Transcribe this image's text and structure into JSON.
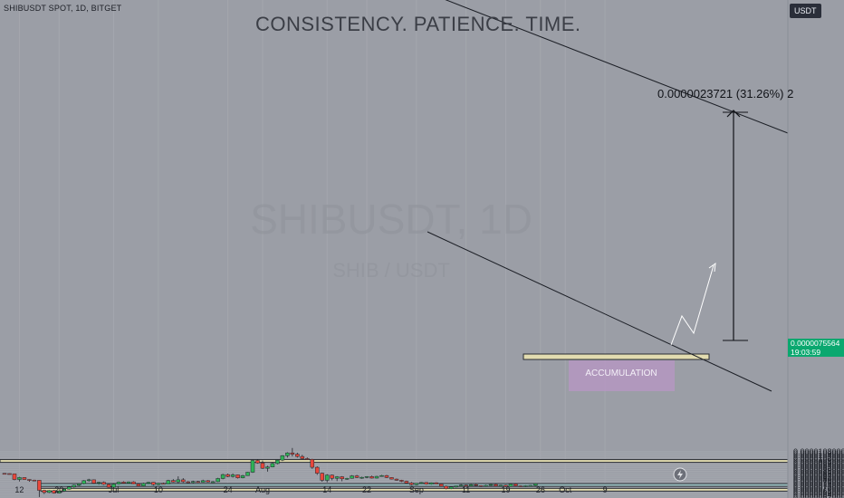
{
  "header": {
    "symbol_line": "SHIBUSDT SPOT, 1D, BITGET",
    "headline": "CONSISTENCY. PATIENCE. TIME.",
    "currency_button": "USDT"
  },
  "watermark": {
    "ticker": "SHIBUSDT, 1D",
    "subtitle": "SHIB / USDT"
  },
  "annotations": {
    "measure_label": "0.0000023721 (31.26%) 2",
    "accumulation_label": "ACCUMULATION"
  },
  "price_tag": {
    "price": "0.0000075564",
    "countdown": "19:03:59"
  },
  "colors": {
    "background": "#9b9ea6",
    "up": "#2eb356",
    "down": "#e8473b",
    "resistance_zone": "#e2dcb0",
    "support_zone": "#e2dcb0",
    "current_zone": "#9ec2c4",
    "accumulation_box": "#b896c4",
    "price_tag": "#0aa86f"
  },
  "chart_data": {
    "type": "candlestick",
    "pair": "SHIBUSDT",
    "timeframe": "1D",
    "exchange": "BITGET",
    "y_axis": {
      "range": [
        6.1e-06,
        1.11e-05
      ],
      "ticks": [
        "0.0000062000",
        "0.0000064000",
        "0.0000066000",
        "0.0000068000",
        "0.0000070000",
        "0.0000072000",
        "0.0000074000",
        "0.0000076000",
        "0.0000078000",
        "0.0000080000",
        "0.0000082000",
        "0.0000084000",
        "0.0000086000",
        "0.0000088000",
        "0.0000090000",
        "0.0000092000",
        "0.0000094000",
        "0.0000096000",
        "0.0000098000",
        "0.0000100000",
        "0.0000102000",
        "0.0000104000",
        "0.0000106000",
        "0.0000108000"
      ]
    },
    "x_axis": {
      "ticks": [
        {
          "label": "12",
          "bar": 3
        },
        {
          "label": "20",
          "bar": 11
        },
        {
          "label": "Jul",
          "bar": 22
        },
        {
          "label": "10",
          "bar": 31
        },
        {
          "label": "24",
          "bar": 45
        },
        {
          "label": "Aug",
          "bar": 52
        },
        {
          "label": "14",
          "bar": 65
        },
        {
          "label": "22",
          "bar": 73
        },
        {
          "label": "Sep",
          "bar": 83
        },
        {
          "label": "11",
          "bar": 93
        },
        {
          "label": "19",
          "bar": 101
        },
        {
          "label": "26",
          "bar": 108
        },
        {
          "label": "Oct",
          "bar": 113
        },
        {
          "label": "9",
          "bar": 121
        }
      ]
    },
    "zones": [
      {
        "name": "resistance",
        "low": 9.9e-06,
        "high": 1e-05
      },
      {
        "name": "current",
        "low": 7.5e-06,
        "high": 7.56e-06
      },
      {
        "name": "support",
        "low": 7.01e-06,
        "high": 7.08e-06
      }
    ],
    "current_price": 7.5564e-06,
    "candles": [
      [
        8.6e-06,
        8.62e-06,
        8.52e-06,
        8.58e-06
      ],
      [
        8.58e-06,
        8.6e-06,
        8.5e-06,
        8.55e-06
      ],
      [
        8.55e-06,
        8.57e-06,
        7.9e-06,
        7.98e-06
      ],
      [
        7.98e-06,
        8.25e-06,
        7.78e-06,
        8.18e-06
      ],
      [
        8.18e-06,
        8.22e-06,
        7.95e-06,
        7.98e-06
      ],
      [
        7.98e-06,
        8e-06,
        7.76e-06,
        7.92e-06
      ],
      [
        7.92e-06,
        7.96e-06,
        7.82e-06,
        7.9e-06
      ],
      [
        7.9e-06,
        7.92e-06,
        6.2e-06,
        6.88e-06
      ],
      [
        6.88e-06,
        6.94e-06,
        6.5e-06,
        6.66e-06
      ],
      [
        6.66e-06,
        6.9e-06,
        6.6e-06,
        6.86e-06
      ],
      [
        6.86e-06,
        6.92e-06,
        6.55e-06,
        6.6e-06
      ],
      [
        6.6e-06,
        6.85e-06,
        6.58e-06,
        6.8e-06
      ],
      [
        6.8e-06,
        7.05e-06,
        6.72e-06,
        7e-06
      ],
      [
        7e-06,
        7.3e-06,
        6.95e-06,
        7.22e-06
      ],
      [
        7.22e-06,
        7.45e-06,
        7.16e-06,
        7.4e-06
      ],
      [
        7.4e-06,
        7.58e-06,
        7.32e-06,
        7.55e-06
      ],
      [
        7.55e-06,
        7.92e-06,
        7.48e-06,
        7.86e-06
      ],
      [
        7.86e-06,
        8.05e-06,
        7.76e-06,
        7.95e-06
      ],
      [
        7.95e-06,
        7.98e-06,
        7.52e-06,
        7.6e-06
      ],
      [
        7.6e-06,
        7.75e-06,
        7.45e-06,
        7.7e-06
      ],
      [
        7.7e-06,
        7.78e-06,
        7.42e-06,
        7.48e-06
      ],
      [
        7.48e-06,
        7.55e-06,
        7.12e-06,
        7.2e-06
      ],
      [
        7.2e-06,
        7.62e-06,
        7.05e-06,
        7.52e-06
      ],
      [
        7.52e-06,
        7.78e-06,
        7.44e-06,
        7.72e-06
      ],
      [
        7.72e-06,
        7.8e-06,
        7.55e-06,
        7.6e-06
      ],
      [
        7.6e-06,
        7.78e-06,
        7.52e-06,
        7.74e-06
      ],
      [
        7.74e-06,
        7.8e-06,
        7.48e-06,
        7.52e-06
      ],
      [
        7.52e-06,
        7.6e-06,
        7.28e-06,
        7.32e-06
      ],
      [
        7.32e-06,
        7.65e-06,
        7.25e-06,
        7.58e-06
      ],
      [
        7.58e-06,
        7.76e-06,
        7.5e-06,
        7.7e-06
      ],
      [
        7.7e-06,
        7.72e-06,
        7.38e-06,
        7.46e-06
      ],
      [
        7.46e-06,
        7.65e-06,
        7.4e-06,
        7.58e-06
      ],
      [
        7.58e-06,
        7.66e-06,
        7.5e-06,
        7.52e-06
      ],
      [
        7.52e-06,
        7.95e-06,
        7.48e-06,
        7.88e-06
      ],
      [
        7.88e-06,
        8.02e-06,
        7.68e-06,
        7.72e-06
      ],
      [
        7.72e-06,
        8.3e-06,
        7.62e-06,
        7.95e-06
      ],
      [
        7.95e-06,
        8.12e-06,
        7.65e-06,
        7.75e-06
      ],
      [
        7.75e-06,
        7.82e-06,
        7.62e-06,
        7.68e-06
      ],
      [
        7.68e-06,
        7.86e-06,
        7.62e-06,
        7.78e-06
      ],
      [
        7.78e-06,
        7.85e-06,
        7.65e-06,
        7.7e-06
      ],
      [
        7.7e-06,
        7.96e-06,
        7.66e-06,
        7.86e-06
      ],
      [
        7.86e-06,
        7.92e-06,
        7.68e-06,
        7.72e-06
      ],
      [
        7.72e-06,
        7.82e-06,
        7.66e-06,
        7.76e-06
      ],
      [
        7.76e-06,
        8.15e-06,
        7.72e-06,
        8.08e-06
      ],
      [
        8.08e-06,
        8.56e-06,
        8e-06,
        8.48e-06
      ],
      [
        8.48e-06,
        8.58e-06,
        8.22e-06,
        8.28e-06
      ],
      [
        8.28e-06,
        8.6e-06,
        8.18e-06,
        8.45e-06
      ],
      [
        8.45e-06,
        8.48e-06,
        8.08e-06,
        8.15e-06
      ],
      [
        8.15e-06,
        8.45e-06,
        8.1e-06,
        8.38e-06
      ],
      [
        8.38e-06,
        8.75e-06,
        8.35e-06,
        8.72e-06
      ],
      [
        8.72e-06,
        9.98e-06,
        8.65e-06,
        9.92e-06
      ],
      [
        9.92e-06,
        1.005e-05,
        9.58e-06,
        9.65e-06
      ],
      [
        9.65e-06,
        9.9e-06,
        9.05e-06,
        9.12e-06
      ],
      [
        9.12e-06,
        9.38e-06,
        8.78e-06,
        9.25e-06
      ],
      [
        9.25e-06,
        9.72e-06,
        9.22e-06,
        9.6e-06
      ],
      [
        9.6e-06,
        1e-05,
        9.52e-06,
        9.95e-06
      ],
      [
        9.95e-06,
        1.045e-05,
        9.85e-06,
        1.04e-05
      ],
      [
        1.04e-05,
        1.075e-05,
        1.02e-05,
        1.068e-05
      ],
      [
        1.068e-05,
        1.118e-05,
        1.032e-05,
        1.055e-05
      ],
      [
        1.055e-05,
        1.07e-05,
        1.02e-05,
        1.032e-05
      ],
      [
        1.032e-05,
        1.048e-05,
        1.002e-05,
        1.01e-05
      ],
      [
        1.01e-05,
        1.022e-05,
        9.98e-06,
        1.002e-05
      ],
      [
        1.002e-05,
        1.008e-05,
        9.06e-06,
        9.22e-06
      ],
      [
        9.22e-06,
        9.32e-06,
        8.45e-06,
        8.62e-06
      ],
      [
        8.62e-06,
        8.68e-06,
        7.75e-06,
        7.9e-06
      ],
      [
        7.9e-06,
        8.52e-06,
        7.68e-06,
        8.42e-06
      ],
      [
        8.42e-06,
        8.48e-06,
        7.9e-06,
        8.1e-06
      ],
      [
        8.1e-06,
        8.32e-06,
        7.82e-06,
        8.26e-06
      ],
      [
        8.26e-06,
        8.32e-06,
        7.8e-06,
        8.05e-06
      ],
      [
        8.05e-06,
        8.15e-06,
        7.95e-06,
        8.1e-06
      ],
      [
        8.1e-06,
        8.42e-06,
        8.06e-06,
        8.35e-06
      ],
      [
        8.35e-06,
        8.45e-06,
        8.12e-06,
        8.18e-06
      ],
      [
        8.18e-06,
        8.26e-06,
        8.05e-06,
        8.2e-06
      ],
      [
        8.2e-06,
        8.32e-06,
        8.1e-06,
        8.28e-06
      ],
      [
        8.28e-06,
        8.38e-06,
        8.08e-06,
        8.12e-06
      ],
      [
        8.12e-06,
        8.35e-06,
        8.08e-06,
        8.3e-06
      ],
      [
        8.3e-06,
        8.44e-06,
        8.26e-06,
        8.38e-06
      ],
      [
        8.38e-06,
        8.45e-06,
        8.12e-06,
        8.18e-06
      ],
      [
        8.18e-06,
        8.22e-06,
        7.98e-06,
        8.02e-06
      ],
      [
        8.02e-06,
        8.08e-06,
        7.85e-06,
        7.9e-06
      ],
      [
        7.9e-06,
        7.95e-06,
        7.72e-06,
        7.8e-06
      ],
      [
        7.8e-06,
        7.86e-06,
        7.55e-06,
        7.62e-06
      ],
      [
        7.62e-06,
        7.72e-06,
        7.38e-06,
        7.45e-06
      ],
      [
        7.45e-06,
        7.62e-06,
        7.4e-06,
        7.58e-06
      ],
      [
        7.58e-06,
        7.72e-06,
        7.52e-06,
        7.68e-06
      ],
      [
        7.68e-06,
        7.72e-06,
        7.45e-06,
        7.5e-06
      ],
      [
        7.5e-06,
        7.68e-06,
        7.45e-06,
        7.65e-06
      ],
      [
        7.65e-06,
        7.7e-06,
        7.48e-06,
        7.52e-06
      ],
      [
        7.52e-06,
        7.56e-06,
        7.25e-06,
        7.3e-06
      ],
      [
        7.3e-06,
        7.38e-06,
        6.98e-06,
        7.05e-06
      ],
      [
        7.05e-06,
        7.28e-06,
        7e-06,
        7.22e-06
      ],
      [
        7.22e-06,
        7.36e-06,
        7.18e-06,
        7.34e-06
      ],
      [
        7.34e-06,
        7.5e-06,
        7.28e-06,
        7.42e-06
      ],
      [
        7.42e-06,
        7.46e-06,
        7.26e-06,
        7.32e-06
      ],
      [
        7.32e-06,
        7.52e-06,
        7.28e-06,
        7.46e-06
      ],
      [
        7.46e-06,
        7.52e-06,
        7.28e-06,
        7.36e-06
      ],
      [
        7.36e-06,
        7.4e-06,
        7.22e-06,
        7.28e-06
      ],
      [
        7.28e-06,
        7.45e-06,
        7.24e-06,
        7.38e-06
      ],
      [
        7.38e-06,
        7.52e-06,
        7.34e-06,
        7.48e-06
      ],
      [
        7.48e-06,
        7.52e-06,
        7.28e-06,
        7.32e-06
      ],
      [
        7.32e-06,
        7.44e-06,
        7.26e-06,
        7.4e-06
      ],
      [
        7.4e-06,
        7.45e-06,
        7.22e-06,
        7.28e-06
      ],
      [
        7.28e-06,
        7.58e-06,
        7.24e-06,
        7.52e-06
      ],
      [
        7.52e-06,
        7.58e-06,
        7.3e-06,
        7.34e-06
      ],
      [
        7.34e-06,
        7.4e-06,
        7.22e-06,
        7.26e-06
      ],
      [
        7.26e-06,
        7.4e-06,
        7.22e-06,
        7.35e-06
      ],
      [
        7.35e-06,
        7.42e-06,
        7.3e-06,
        7.38e-06
      ],
      [
        7.38e-06,
        7.58e-06,
        7.35e-06,
        7.55e-06
      ]
    ]
  }
}
